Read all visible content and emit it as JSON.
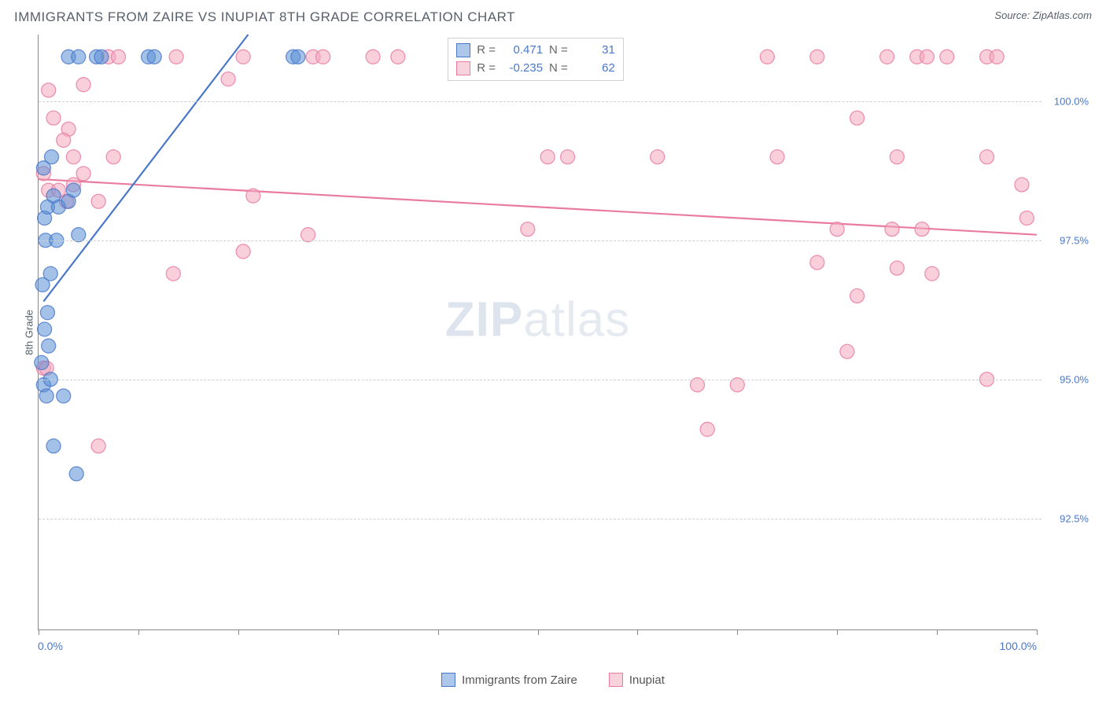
{
  "header": {
    "title": "IMMIGRANTS FROM ZAIRE VS INUPIAT 8TH GRADE CORRELATION CHART",
    "source_label": "Source:",
    "source_name": "ZipAtlas.com"
  },
  "chart": {
    "type": "scatter",
    "ylabel": "8th Grade",
    "xlim": [
      0,
      100
    ],
    "ylim": [
      90.5,
      101.2
    ],
    "xtick_labels": {
      "left": "0.0%",
      "right": "100.0%"
    },
    "xtick_positions": [
      0,
      10,
      20,
      30,
      40,
      50,
      60,
      70,
      80,
      90,
      100
    ],
    "ytick_labels": [
      {
        "value": 92.5,
        "label": "92.5%"
      },
      {
        "value": 95.0,
        "label": "95.0%"
      },
      {
        "value": 97.5,
        "label": "97.5%"
      },
      {
        "value": 100.0,
        "label": "100.0%"
      }
    ],
    "grid_color": "#cfcfcf",
    "background_color": "#ffffff",
    "marker_radius": 9,
    "marker_opacity": 0.55,
    "line_width": 2.2,
    "watermark": {
      "bold": "ZIP",
      "light": "atlas"
    },
    "series": {
      "blue": {
        "label": "Immigrants from Zaire",
        "color": "#5a8fd6",
        "stroke": "#4a78c8",
        "R": "0.471",
        "N": "31",
        "trend": {
          "x1": 0.5,
          "y1": 96.4,
          "x2": 21,
          "y2": 101.2
        },
        "points": [
          {
            "x": 0.5,
            "y": 94.9
          },
          {
            "x": 0.8,
            "y": 94.7
          },
          {
            "x": 1.2,
            "y": 95.0
          },
          {
            "x": 0.3,
            "y": 95.3
          },
          {
            "x": 1.0,
            "y": 95.6
          },
          {
            "x": 0.6,
            "y": 95.9
          },
          {
            "x": 2.5,
            "y": 94.7
          },
          {
            "x": 0.4,
            "y": 96.7
          },
          {
            "x": 1.2,
            "y": 96.9
          },
          {
            "x": 0.7,
            "y": 97.5
          },
          {
            "x": 1.8,
            "y": 97.5
          },
          {
            "x": 4.0,
            "y": 97.6
          },
          {
            "x": 0.6,
            "y": 97.9
          },
          {
            "x": 0.9,
            "y": 98.1
          },
          {
            "x": 2.0,
            "y": 98.1
          },
          {
            "x": 3.0,
            "y": 98.2
          },
          {
            "x": 1.5,
            "y": 98.3
          },
          {
            "x": 3.5,
            "y": 98.4
          },
          {
            "x": 0.5,
            "y": 98.8
          },
          {
            "x": 1.3,
            "y": 99.0
          },
          {
            "x": 3.0,
            "y": 100.8
          },
          {
            "x": 4.0,
            "y": 100.8
          },
          {
            "x": 5.8,
            "y": 100.8
          },
          {
            "x": 6.3,
            "y": 100.8
          },
          {
            "x": 11.0,
            "y": 100.8
          },
          {
            "x": 11.6,
            "y": 100.8
          },
          {
            "x": 25.5,
            "y": 100.8
          },
          {
            "x": 26.0,
            "y": 100.8
          },
          {
            "x": 3.8,
            "y": 93.3
          },
          {
            "x": 1.5,
            "y": 93.8
          },
          {
            "x": 0.9,
            "y": 96.2
          }
        ]
      },
      "pink": {
        "label": "Inupiat",
        "color": "#f2a8bd",
        "stroke": "#e97ba0",
        "R": "-0.235",
        "N": "62",
        "trend": {
          "x1": 0,
          "y1": 98.6,
          "x2": 100,
          "y2": 97.6
        },
        "points": [
          {
            "x": 1.0,
            "y": 98.4
          },
          {
            "x": 3.5,
            "y": 98.5
          },
          {
            "x": 2.0,
            "y": 98.4
          },
          {
            "x": 2.8,
            "y": 98.2
          },
          {
            "x": 6.0,
            "y": 98.2
          },
          {
            "x": 4.5,
            "y": 98.7
          },
          {
            "x": 7.5,
            "y": 99.0
          },
          {
            "x": 13.8,
            "y": 100.8
          },
          {
            "x": 7.0,
            "y": 100.8
          },
          {
            "x": 8.0,
            "y": 100.8
          },
          {
            "x": 19.0,
            "y": 100.4
          },
          {
            "x": 20.5,
            "y": 100.8
          },
          {
            "x": 27.5,
            "y": 100.8
          },
          {
            "x": 28.5,
            "y": 100.8
          },
          {
            "x": 33.5,
            "y": 100.8
          },
          {
            "x": 36.0,
            "y": 100.8
          },
          {
            "x": 43.0,
            "y": 100.8
          },
          {
            "x": 51.5,
            "y": 100.8
          },
          {
            "x": 51.0,
            "y": 99.0
          },
          {
            "x": 53.0,
            "y": 99.0
          },
          {
            "x": 27.0,
            "y": 97.6
          },
          {
            "x": 20.5,
            "y": 97.3
          },
          {
            "x": 13.5,
            "y": 96.9
          },
          {
            "x": 6.0,
            "y": 93.8
          },
          {
            "x": 49.0,
            "y": 97.7
          },
          {
            "x": 62.0,
            "y": 99.0
          },
          {
            "x": 73.0,
            "y": 100.8
          },
          {
            "x": 74.0,
            "y": 99.0
          },
          {
            "x": 78.0,
            "y": 100.8
          },
          {
            "x": 85.0,
            "y": 100.8
          },
          {
            "x": 82.0,
            "y": 99.7
          },
          {
            "x": 88.0,
            "y": 100.8
          },
          {
            "x": 89.0,
            "y": 100.8
          },
          {
            "x": 91.0,
            "y": 100.8
          },
          {
            "x": 95.0,
            "y": 100.8
          },
          {
            "x": 96.0,
            "y": 100.8
          },
          {
            "x": 98.5,
            "y": 98.5
          },
          {
            "x": 95.0,
            "y": 99.0
          },
          {
            "x": 86.0,
            "y": 99.0
          },
          {
            "x": 80.0,
            "y": 97.7
          },
          {
            "x": 85.5,
            "y": 97.7
          },
          {
            "x": 88.5,
            "y": 97.7
          },
          {
            "x": 99.0,
            "y": 97.9
          },
          {
            "x": 78.0,
            "y": 97.1
          },
          {
            "x": 82.0,
            "y": 96.5
          },
          {
            "x": 86.0,
            "y": 97.0
          },
          {
            "x": 89.5,
            "y": 96.9
          },
          {
            "x": 81.0,
            "y": 95.5
          },
          {
            "x": 66.0,
            "y": 94.9
          },
          {
            "x": 70.0,
            "y": 94.9
          },
          {
            "x": 95.0,
            "y": 95.0
          },
          {
            "x": 67.0,
            "y": 94.1
          },
          {
            "x": 0.5,
            "y": 95.2
          },
          {
            "x": 0.8,
            "y": 95.2
          },
          {
            "x": 21.5,
            "y": 98.3
          },
          {
            "x": 3.0,
            "y": 99.5
          },
          {
            "x": 4.5,
            "y": 100.3
          },
          {
            "x": 1.0,
            "y": 100.2
          },
          {
            "x": 1.5,
            "y": 99.7
          },
          {
            "x": 2.5,
            "y": 99.3
          },
          {
            "x": 3.5,
            "y": 99.0
          },
          {
            "x": 0.5,
            "y": 98.7
          }
        ]
      }
    }
  },
  "legend": {
    "series1_label": "Immigrants from Zaire",
    "series2_label": "Inupiat"
  }
}
